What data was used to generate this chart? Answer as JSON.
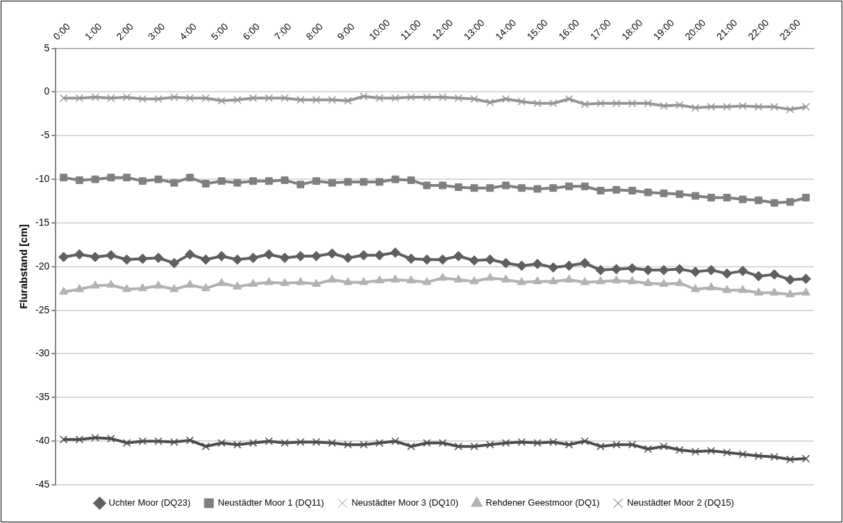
{
  "chart_data": {
    "type": "line",
    "ylabel": "Flurabstand [cm]",
    "categories": [
      "0:00",
      null,
      "1:00",
      null,
      "2:00",
      null,
      "3:00",
      null,
      "4:00",
      null,
      "5:00",
      null,
      "6:00",
      null,
      "7:00",
      null,
      "8:00",
      null,
      "9:00",
      null,
      "10:00",
      null,
      "11:00",
      null,
      "12:00",
      null,
      "13:00",
      null,
      "14:00",
      null,
      "15:00",
      null,
      "16:00",
      null,
      "17:00",
      null,
      "18:00",
      null,
      "19:00",
      null,
      "20:00",
      null,
      "21:00",
      null,
      "22:00",
      null,
      "23:00",
      null
    ],
    "ylim": [
      -45,
      5
    ],
    "yticks": [
      -45,
      -40,
      -35,
      -30,
      -25,
      -20,
      -15,
      -10,
      -5,
      0,
      5
    ],
    "grid": "y",
    "legend": "bottom",
    "series": [
      {
        "name": "Uchter Moor (DQ23)",
        "color": "#5f5f5f",
        "marker": "diamond",
        "values": [
          -18.9,
          -18.6,
          -18.9,
          -18.7,
          -19.2,
          -19.1,
          -19.0,
          -19.6,
          -18.6,
          -19.2,
          -18.8,
          -19.2,
          -19.0,
          -18.6,
          -19.0,
          -18.8,
          -18.8,
          -18.5,
          -19.0,
          -18.7,
          -18.7,
          -18.4,
          -19.1,
          -19.2,
          -19.2,
          -18.8,
          -19.3,
          -19.2,
          -19.6,
          -19.9,
          -19.7,
          -20.1,
          -19.9,
          -19.6,
          -20.4,
          -20.3,
          -20.2,
          -20.4,
          -20.4,
          -20.3,
          -20.6,
          -20.4,
          -20.8,
          -20.5,
          -21.1,
          -20.9,
          -21.5,
          -21.4
        ]
      },
      {
        "name": "Neustädter Moor 1 (DQ11)",
        "color": "#7f7f7f",
        "marker": "square",
        "values": [
          -9.8,
          -10.1,
          -10.0,
          -9.8,
          -9.8,
          -10.2,
          -10.0,
          -10.4,
          -9.8,
          -10.5,
          -10.2,
          -10.4,
          -10.2,
          -10.2,
          -10.1,
          -10.6,
          -10.2,
          -10.4,
          -10.3,
          -10.3,
          -10.3,
          -10.0,
          -10.1,
          -10.7,
          -10.7,
          -10.9,
          -11.0,
          -11.0,
          -10.7,
          -11.0,
          -11.1,
          -11.0,
          -10.8,
          -10.8,
          -11.3,
          -11.2,
          -11.3,
          -11.5,
          -11.6,
          -11.7,
          -11.9,
          -12.1,
          -12.1,
          -12.3,
          -12.4,
          -12.7,
          -12.6,
          -12.1
        ]
      },
      {
        "name": "Neustädter Moor 3 (DQ10)",
        "color": "#969696",
        "marker": "cross",
        "values": [
          -0.7,
          -0.7,
          -0.6,
          -0.7,
          -0.6,
          -0.8,
          -0.8,
          -0.6,
          -0.7,
          -0.7,
          -1.0,
          -0.9,
          -0.7,
          -0.7,
          -0.7,
          -0.9,
          -0.9,
          -0.9,
          -1.0,
          -0.5,
          -0.7,
          -0.7,
          -0.6,
          -0.6,
          -0.6,
          -0.7,
          -0.8,
          -1.2,
          -0.8,
          -1.1,
          -1.3,
          -1.3,
          -0.8,
          -1.4,
          -1.3,
          -1.3,
          -1.3,
          -1.3,
          -1.6,
          -1.5,
          -1.8,
          -1.7,
          -1.7,
          -1.6,
          -1.7,
          -1.7,
          -2.0,
          -1.7
        ]
      },
      {
        "name": "Rehdener Geestmoor (DQ1)",
        "color": "#b2b2b2",
        "marker": "triangle",
        "values": [
          -22.9,
          -22.6,
          -22.2,
          -22.1,
          -22.6,
          -22.5,
          -22.2,
          -22.6,
          -22.1,
          -22.5,
          -21.9,
          -22.3,
          -22.0,
          -21.8,
          -21.9,
          -21.8,
          -22.0,
          -21.5,
          -21.8,
          -21.8,
          -21.6,
          -21.5,
          -21.6,
          -21.8,
          -21.3,
          -21.5,
          -21.7,
          -21.3,
          -21.5,
          -21.8,
          -21.7,
          -21.7,
          -21.5,
          -21.8,
          -21.7,
          -21.6,
          -21.7,
          -21.9,
          -22.0,
          -21.9,
          -22.6,
          -22.4,
          -22.7,
          -22.7,
          -23.0,
          -23.0,
          -23.2,
          -23.0
        ]
      },
      {
        "name": "Neustädter Moor 2 (DQ15)",
        "color": "#4d4d4d",
        "marker": "cross",
        "values": [
          -39.8,
          -39.8,
          -39.6,
          -39.7,
          -40.2,
          -40.0,
          -40.0,
          -40.1,
          -39.9,
          -40.6,
          -40.2,
          -40.4,
          -40.2,
          -40.0,
          -40.2,
          -40.1,
          -40.1,
          -40.2,
          -40.4,
          -40.4,
          -40.2,
          -40.0,
          -40.6,
          -40.2,
          -40.2,
          -40.6,
          -40.6,
          -40.4,
          -40.2,
          -40.1,
          -40.2,
          -40.1,
          -40.4,
          -40.0,
          -40.6,
          -40.4,
          -40.4,
          -40.9,
          -40.6,
          -41.0,
          -41.2,
          -41.1,
          -41.3,
          -41.5,
          -41.7,
          -41.8,
          -42.1,
          -42.0
        ]
      }
    ]
  }
}
